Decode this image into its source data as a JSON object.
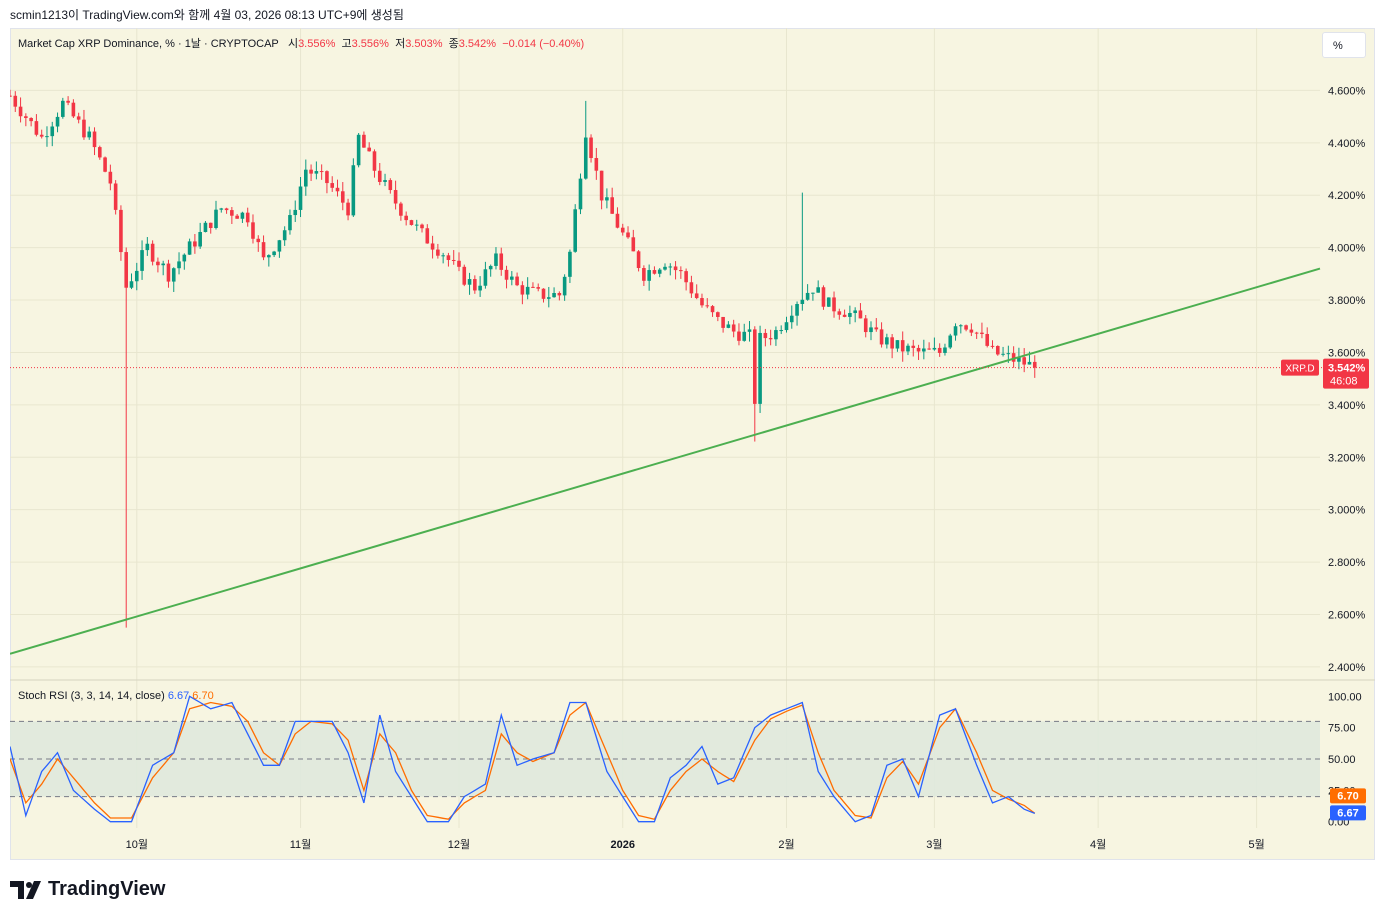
{
  "header": {
    "attribution": "scmin1213이 TradingView.com와 함께 4월 03, 2026 08:13 UTC+9에 생성됨"
  },
  "legend": {
    "symbol_text": "Market Cap XRP Dominance, % · 1날 · CRYPTOCAP",
    "open_label": "시",
    "open_value": "3.556%",
    "high_label": "고",
    "high_value": "3.556%",
    "low_label": "저",
    "low_value": "3.503%",
    "close_label": "종",
    "close_value": "3.542%",
    "change": "−0.014 (−0.40%)"
  },
  "scale_button": "%",
  "price_tag": {
    "symbol": "XRP.D",
    "value": "3.542%",
    "countdown": "46:08",
    "level": 3.542
  },
  "indicator": {
    "title": "Stoch RSI (3, 3, 14, 14, close)",
    "k_value": "6.67",
    "d_value": "6.70"
  },
  "colors": {
    "up": "#089981",
    "down": "#f23645",
    "trendline": "#4caf50",
    "k_line": "#2962ff",
    "d_line": "#ff6d00",
    "background": "#f7f5e1"
  },
  "footer": {
    "brand": "TradingView"
  },
  "chart_data": [
    {
      "type": "candlestick",
      "y_axis_ticks": [
        "4.600%",
        "4.400%",
        "4.200%",
        "4.000%",
        "3.800%",
        "3.600%",
        "3.400%",
        "3.200%",
        "3.000%",
        "2.800%",
        "2.600%",
        "2.400%"
      ],
      "y_tick_values": [
        4.6,
        4.4,
        4.2,
        4.0,
        3.8,
        3.6,
        3.4,
        3.2,
        3.0,
        2.8,
        2.6,
        2.4
      ],
      "ylim": [
        2.35,
        4.8
      ],
      "x_axis_ticks": [
        "10월",
        "11월",
        "12월",
        "2026",
        "2월",
        "3월",
        "4월",
        "5월"
      ],
      "x_tick_days": [
        24,
        55,
        85,
        116,
        147,
        175,
        206,
        236
      ],
      "xlim_days": [
        0,
        248
      ],
      "grid": true,
      "trendline": {
        "from": [
          0,
          2.45
        ],
        "to": [
          248,
          3.92
        ]
      },
      "ohlc_keyframes": [
        [
          0,
          4.58
        ],
        [
          6,
          4.42
        ],
        [
          10,
          4.55
        ],
        [
          15,
          4.42
        ],
        [
          19,
          4.25
        ],
        [
          22,
          3.85
        ],
        [
          26,
          4.0
        ],
        [
          30,
          3.9
        ],
        [
          36,
          4.05
        ],
        [
          40,
          4.15
        ],
        [
          45,
          4.12
        ],
        [
          48,
          3.95
        ],
        [
          53,
          4.1
        ],
        [
          56,
          4.3
        ],
        [
          60,
          4.25
        ],
        [
          64,
          4.15
        ],
        [
          66,
          4.42
        ],
        [
          69,
          4.3
        ],
        [
          72,
          4.2
        ],
        [
          75,
          4.12
        ],
        [
          78,
          4.05
        ],
        [
          82,
          3.98
        ],
        [
          85,
          3.9
        ],
        [
          88,
          3.85
        ],
        [
          92,
          3.95
        ],
        [
          96,
          3.85
        ],
        [
          100,
          3.82
        ],
        [
          104,
          3.82
        ],
        [
          106,
          3.98
        ],
        [
          109,
          4.45
        ],
        [
          112,
          4.2
        ],
        [
          116,
          4.05
        ],
        [
          120,
          3.9
        ],
        [
          124,
          3.95
        ],
        [
          127,
          3.9
        ],
        [
          131,
          3.78
        ],
        [
          134,
          3.72
        ],
        [
          137,
          3.68
        ],
        [
          140,
          3.66
        ],
        [
          141,
          3.42
        ],
        [
          142,
          3.65
        ],
        [
          145,
          3.68
        ],
        [
          149,
          3.8
        ],
        [
          152,
          3.85
        ],
        [
          155,
          3.78
        ],
        [
          158,
          3.76
        ],
        [
          161,
          3.72
        ],
        [
          164,
          3.66
        ],
        [
          168,
          3.62
        ],
        [
          172,
          3.6
        ],
        [
          176,
          3.6
        ],
        [
          179,
          3.72
        ],
        [
          182,
          3.7
        ],
        [
          186,
          3.6
        ],
        [
          189,
          3.58
        ],
        [
          192,
          3.56
        ],
        [
          194,
          3.543
        ]
      ],
      "notable_wicks": {
        "low_day_22": 2.55,
        "low_day_141": 3.26,
        "high_day_109": 4.56,
        "high_day_150": 4.21
      }
    },
    {
      "type": "line",
      "title": "Stoch RSI (3, 3, 14, 14, close)",
      "y_axis_ticks": [
        "100.00",
        "75.00",
        "50.00",
        "25.00",
        "0.00"
      ],
      "y_tick_values": [
        100,
        75,
        50,
        25,
        0
      ],
      "ylim": [
        -5,
        105
      ],
      "bands": {
        "upper": 80,
        "middle": 50,
        "lower": 20
      },
      "k_keyframes": [
        [
          0,
          60
        ],
        [
          3,
          5
        ],
        [
          6,
          40
        ],
        [
          9,
          55
        ],
        [
          12,
          25
        ],
        [
          16,
          10
        ],
        [
          19,
          0
        ],
        [
          23,
          0
        ],
        [
          27,
          45
        ],
        [
          31,
          55
        ],
        [
          34,
          100
        ],
        [
          38,
          90
        ],
        [
          42,
          95
        ],
        [
          45,
          70
        ],
        [
          48,
          45
        ],
        [
          51,
          45
        ],
        [
          54,
          80
        ],
        [
          57,
          80
        ],
        [
          61,
          80
        ],
        [
          64,
          55
        ],
        [
          67,
          15
        ],
        [
          70,
          85
        ],
        [
          73,
          40
        ],
        [
          76,
          20
        ],
        [
          79,
          0
        ],
        [
          83,
          0
        ],
        [
          86,
          20
        ],
        [
          90,
          30
        ],
        [
          93,
          85
        ],
        [
          96,
          45
        ],
        [
          99,
          50
        ],
        [
          103,
          55
        ],
        [
          106,
          95
        ],
        [
          109,
          95
        ],
        [
          113,
          40
        ],
        [
          116,
          20
        ],
        [
          119,
          0
        ],
        [
          122,
          0
        ],
        [
          125,
          35
        ],
        [
          128,
          45
        ],
        [
          131,
          60
        ],
        [
          134,
          30
        ],
        [
          137,
          35
        ],
        [
          141,
          75
        ],
        [
          144,
          85
        ],
        [
          147,
          90
        ],
        [
          150,
          95
        ],
        [
          153,
          40
        ],
        [
          156,
          20
        ],
        [
          160,
          0
        ],
        [
          163,
          5
        ],
        [
          166,
          45
        ],
        [
          169,
          50
        ],
        [
          172,
          20
        ],
        [
          176,
          85
        ],
        [
          179,
          90
        ],
        [
          183,
          45
        ],
        [
          186,
          15
        ],
        [
          189,
          20
        ],
        [
          192,
          10
        ],
        [
          194,
          6.67
        ]
      ],
      "d_keyframes": [
        [
          0,
          50
        ],
        [
          3,
          15
        ],
        [
          6,
          30
        ],
        [
          9,
          50
        ],
        [
          12,
          35
        ],
        [
          16,
          15
        ],
        [
          19,
          3
        ],
        [
          23,
          3
        ],
        [
          27,
          35
        ],
        [
          31,
          55
        ],
        [
          34,
          90
        ],
        [
          38,
          95
        ],
        [
          42,
          92
        ],
        [
          45,
          80
        ],
        [
          48,
          55
        ],
        [
          51,
          45
        ],
        [
          54,
          70
        ],
        [
          57,
          80
        ],
        [
          61,
          78
        ],
        [
          64,
          65
        ],
        [
          67,
          25
        ],
        [
          70,
          70
        ],
        [
          73,
          55
        ],
        [
          76,
          25
        ],
        [
          79,
          5
        ],
        [
          83,
          2
        ],
        [
          86,
          15
        ],
        [
          90,
          25
        ],
        [
          93,
          70
        ],
        [
          96,
          55
        ],
        [
          99,
          48
        ],
        [
          103,
          55
        ],
        [
          106,
          85
        ],
        [
          109,
          95
        ],
        [
          113,
          55
        ],
        [
          116,
          25
        ],
        [
          119,
          5
        ],
        [
          122,
          2
        ],
        [
          125,
          25
        ],
        [
          128,
          40
        ],
        [
          131,
          50
        ],
        [
          134,
          40
        ],
        [
          137,
          32
        ],
        [
          141,
          65
        ],
        [
          144,
          82
        ],
        [
          147,
          88
        ],
        [
          150,
          93
        ],
        [
          153,
          55
        ],
        [
          156,
          25
        ],
        [
          160,
          5
        ],
        [
          163,
          3
        ],
        [
          166,
          35
        ],
        [
          169,
          48
        ],
        [
          172,
          30
        ],
        [
          176,
          75
        ],
        [
          179,
          90
        ],
        [
          183,
          55
        ],
        [
          186,
          25
        ],
        [
          189,
          18
        ],
        [
          192,
          13
        ],
        [
          194,
          6.7
        ]
      ]
    }
  ]
}
